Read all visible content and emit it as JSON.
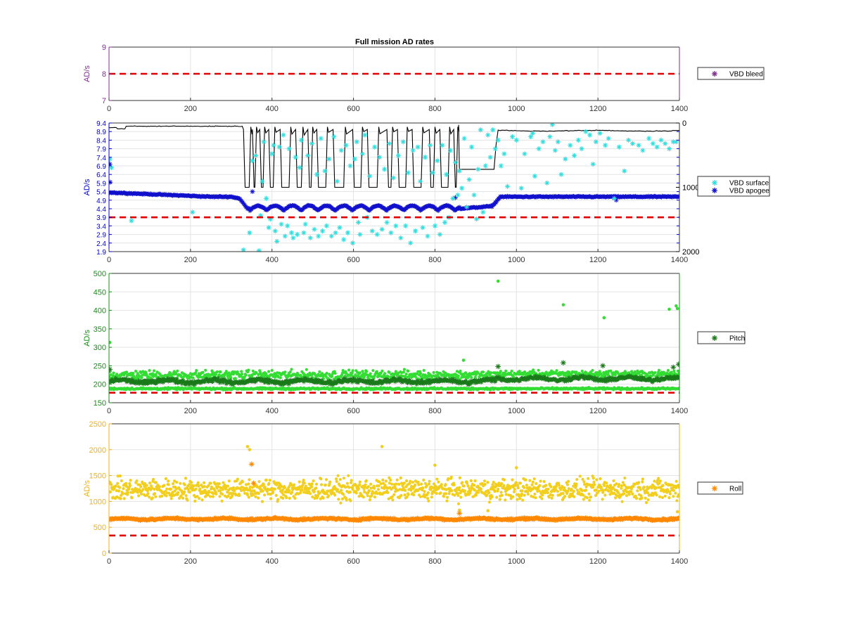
{
  "title": "Full mission AD rates",
  "chart_data": [
    {
      "type": "scatter",
      "ylabel": "AD/s",
      "xlim": [
        0,
        1400
      ],
      "ylim": [
        7,
        9
      ],
      "color": "#7E2F8E",
      "x_ticks": [
        "0",
        "200",
        "400",
        "600",
        "800",
        "1000",
        "1200",
        "1400"
      ],
      "y_ticks": [
        "7",
        "8",
        "9"
      ],
      "threshold": 8,
      "grid": true,
      "legend_position": "right",
      "legend": [
        {
          "name": "VBD bleed",
          "color": "#7E2F8E"
        }
      ],
      "series": []
    },
    {
      "type": "scatter",
      "ylabel": "AD/s",
      "xlim": [
        0,
        1400
      ],
      "ylim": [
        1.9,
        9.4
      ],
      "color": "#0000CC",
      "x_ticks": [
        "0",
        "200",
        "400",
        "600",
        "800",
        "1000",
        "1200",
        "1400"
      ],
      "y_ticks": [
        "1.9",
        "2.4",
        "2.9",
        "3.4",
        "3.9",
        "4.4",
        "4.9",
        "5.4",
        "5.9",
        "6.4",
        "6.9",
        "7.4",
        "7.9",
        "8.4",
        "8.9",
        "9.4"
      ],
      "threshold": 3.9,
      "grid": true,
      "legend_position": "right",
      "legend": [
        {
          "name": "VBD surface",
          "color": "#33DDDD"
        },
        {
          "name": "VBD apogee",
          "color": "#1111CC"
        }
      ],
      "y2lim": [
        0,
        2000
      ],
      "y2_reversed": true,
      "y2_ticks": [
        "0",
        "1000",
        "2000"
      ],
      "y2_line_color": "#000000",
      "depth_profile": {
        "dive_intervals": [
          [
            330,
            348
          ],
          [
            352,
            362
          ],
          [
            370,
            382
          ],
          [
            392,
            407
          ],
          [
            420,
            446
          ],
          [
            458,
            476
          ],
          [
            488,
            500
          ],
          [
            510,
            536
          ],
          [
            550,
            580
          ],
          [
            598,
            622
          ],
          [
            634,
            662
          ],
          [
            682,
            696
          ],
          [
            708,
            732
          ],
          [
            744,
            770
          ],
          [
            786,
            800
          ],
          [
            812,
            836
          ],
          [
            846,
            856
          ]
        ],
        "surface_depth": 100,
        "max_depth": 1000,
        "flat_segment": {
          "x": [
            860,
            945
          ],
          "depth": 720
        }
      },
      "series": [
        {
          "name": "VBD surface",
          "color": "#33DDDD",
          "points": [
            [
              2,
              7.3
            ],
            [
              6,
              6.8
            ],
            [
              55,
              3.7
            ],
            [
              205,
              4.2
            ],
            [
              330,
              2.0
            ],
            [
              345,
              3.0
            ],
            [
              352,
              7.2
            ],
            [
              360,
              7.5
            ],
            [
              368,
              1.95
            ],
            [
              372,
              4.0
            ],
            [
              376,
              6.0
            ],
            [
              380,
              8.3
            ],
            [
              386,
              5.0
            ],
            [
              392,
              3.3
            ],
            [
              396,
              3.8
            ],
            [
              400,
              7.6
            ],
            [
              404,
              8.1
            ],
            [
              408,
              3.1
            ],
            [
              412,
              2.5
            ],
            [
              418,
              8.0
            ],
            [
              423,
              3.5
            ],
            [
              428,
              8.7
            ],
            [
              432,
              2.8
            ],
            [
              438,
              3.4
            ],
            [
              442,
              7.9
            ],
            [
              448,
              3.0
            ],
            [
              452,
              2.7
            ],
            [
              458,
              7.4
            ],
            [
              462,
              2.9
            ],
            [
              468,
              6.8
            ],
            [
              472,
              8.4
            ],
            [
              478,
              3.0
            ],
            [
              482,
              3.5
            ],
            [
              488,
              7.5
            ],
            [
              494,
              2.7
            ],
            [
              498,
              8.2
            ],
            [
              504,
              3.2
            ],
            [
              510,
              6.4
            ],
            [
              514,
              2.8
            ],
            [
              520,
              8.5
            ],
            [
              524,
              3.1
            ],
            [
              530,
              6.6
            ],
            [
              534,
              3.4
            ],
            [
              540,
              7.3
            ],
            [
              546,
              2.8
            ],
            [
              552,
              8.6
            ],
            [
              556,
              3.0
            ],
            [
              560,
              6.0
            ],
            [
              566,
              3.3
            ],
            [
              570,
              7.8
            ],
            [
              576,
              2.6
            ],
            [
              582,
              8.1
            ],
            [
              586,
              3.0
            ],
            [
              592,
              6.9
            ],
            [
              598,
              2.4
            ],
            [
              603,
              7.3
            ],
            [
              608,
              8.3
            ],
            [
              612,
              3.6
            ],
            [
              616,
              2.9
            ],
            [
              622,
              7.6
            ],
            [
              628,
              8.7
            ],
            [
              634,
              3.9
            ],
            [
              640,
              6.3
            ],
            [
              646,
              3.1
            ],
            [
              652,
              8.0
            ],
            [
              658,
              2.9
            ],
            [
              664,
              7.4
            ],
            [
              670,
              3.2
            ],
            [
              676,
              6.7
            ],
            [
              682,
              3.6
            ],
            [
              688,
              8.2
            ],
            [
              692,
              3.0
            ],
            [
              698,
              6.2
            ],
            [
              704,
              3.4
            ],
            [
              710,
              7.5
            ],
            [
              716,
              2.7
            ],
            [
              722,
              8.3
            ],
            [
              728,
              3.4
            ],
            [
              734,
              6.5
            ],
            [
              740,
              2.4
            ],
            [
              746,
              7.8
            ],
            [
              752,
              3.1
            ],
            [
              758,
              8.0
            ],
            [
              764,
              6.0
            ],
            [
              770,
              3.3
            ],
            [
              776,
              7.4
            ],
            [
              782,
              2.8
            ],
            [
              788,
              8.1
            ],
            [
              794,
              6.5
            ],
            [
              800,
              3.4
            ],
            [
              806,
              7.2
            ],
            [
              812,
              2.9
            ],
            [
              818,
              8.1
            ],
            [
              824,
              3.6
            ],
            [
              828,
              6.4
            ],
            [
              834,
              3.9
            ],
            [
              838,
              7.8
            ],
            [
              844,
              5.0
            ],
            [
              850,
              7.1
            ],
            [
              856,
              5.2
            ],
            [
              860,
              6.6
            ],
            [
              866,
              5.6
            ],
            [
              872,
              8.5
            ],
            [
              878,
              4.5
            ],
            [
              884,
              6.1
            ],
            [
              890,
              8.0
            ],
            [
              896,
              5.2
            ],
            [
              902,
              3.8
            ],
            [
              906,
              6.7
            ],
            [
              912,
              9.0
            ],
            [
              918,
              4.2
            ],
            [
              924,
              6.9
            ],
            [
              930,
              8.7
            ],
            [
              936,
              7.4
            ],
            [
              942,
              9.0
            ],
            [
              948,
              7.9
            ],
            [
              955,
              8.4
            ],
            [
              962,
              6.9
            ],
            [
              970,
              7.6
            ],
            [
              978,
              5.7
            ],
            [
              990,
              8.6
            ],
            [
              1000,
              8.4
            ],
            [
              1012,
              5.6
            ],
            [
              1020,
              7.6
            ],
            [
              1035,
              8.6
            ],
            [
              1040,
              8.8
            ],
            [
              1045,
              6.3
            ],
            [
              1055,
              7.9
            ],
            [
              1065,
              8.3
            ],
            [
              1075,
              5.9
            ],
            [
              1082,
              8.6
            ],
            [
              1088,
              9.3
            ],
            [
              1095,
              7.8
            ],
            [
              1102,
              8.3
            ],
            [
              1110,
              6.4
            ],
            [
              1120,
              7.3
            ],
            [
              1132,
              8.1
            ],
            [
              1142,
              7.5
            ],
            [
              1152,
              8.4
            ],
            [
              1160,
              7.9
            ],
            [
              1170,
              8.9
            ],
            [
              1180,
              8.7
            ],
            [
              1188,
              7.0
            ],
            [
              1195,
              8.3
            ],
            [
              1205,
              8.8
            ],
            [
              1218,
              8.1
            ],
            [
              1226,
              8.5
            ],
            [
              1240,
              5.0
            ],
            [
              1252,
              8.0
            ],
            [
              1265,
              6.6
            ],
            [
              1275,
              8.4
            ],
            [
              1285,
              8.2
            ],
            [
              1300,
              8.1
            ],
            [
              1310,
              7.8
            ],
            [
              1325,
              8.5
            ],
            [
              1335,
              8.2
            ],
            [
              1345,
              8.0
            ],
            [
              1355,
              8.4
            ],
            [
              1365,
              8.2
            ],
            [
              1375,
              7.9
            ],
            [
              1385,
              8.3
            ],
            [
              1392,
              8.3
            ]
          ]
        },
        {
          "name": "VBD apogee",
          "color": "#1111CC",
          "trend": {
            "x": [
              0,
              50,
              100,
              150,
              200,
              250,
              300,
              320,
              340,
              860,
              940,
              950,
              960,
              1400
            ],
            "y": [
              5.35,
              5.3,
              5.25,
              5.2,
              5.15,
              5.1,
              5.1,
              5.0,
              4.4,
              4.4,
              4.55,
              4.8,
              5.1,
              5.1
            ]
          },
          "oscillation": {
            "x_range": [
              345,
              860
            ],
            "period": 42,
            "amplitude": 0.28,
            "center": 4.45
          },
          "sample_interval": 2,
          "outliers": [
            [
              2,
              7.0
            ],
            [
              3,
              5.95
            ],
            [
              352,
              5.4
            ],
            [
              850,
              5.05
            ],
            [
              1245,
              4.9
            ]
          ]
        }
      ]
    },
    {
      "type": "scatter",
      "ylabel": "AD/s",
      "xlim": [
        0,
        1400
      ],
      "ylim": [
        150,
        500
      ],
      "color": "#1A8C1A",
      "x_ticks": [
        "0",
        "200",
        "400",
        "600",
        "800",
        "1000",
        "1200",
        "1400"
      ],
      "y_ticks": [
        "150",
        "200",
        "250",
        "300",
        "350",
        "400",
        "450",
        "500"
      ],
      "threshold": 177,
      "grid": true,
      "legend_position": "right",
      "legend": [
        {
          "name": "Pitch",
          "color": "#1A7A1A"
        }
      ],
      "series": [
        {
          "name": "Pitch high-rate points",
          "color": "#33DD33",
          "bands": [
            {
              "x_range": [
                0,
                950
              ],
              "center": 225,
              "spread": 14
            },
            {
              "x_range": [
                950,
                1400
              ],
              "center": 228,
              "spread": 10
            },
            {
              "x_range": [
                0,
                1400
              ],
              "center": 188,
              "spread": 3
            }
          ],
          "outliers": [
            [
              2,
              313
            ],
            [
              870,
              265
            ],
            [
              955,
              479
            ],
            [
              1115,
              415
            ],
            [
              1215,
              380
            ],
            [
              1375,
              403
            ],
            [
              1392,
              412
            ],
            [
              1395,
              405
            ]
          ]
        },
        {
          "name": "Pitch",
          "color": "#1A7A1A",
          "bands": [
            {
              "x_range": [
                0,
                950
              ],
              "center": 208,
              "spread": 8
            },
            {
              "x_range": [
                950,
                1400
              ],
              "center": 215,
              "spread": 7
            }
          ],
          "outliers": [
            [
              2,
              240
            ],
            [
              955,
              248
            ],
            [
              1115,
              258
            ],
            [
              1212,
              250
            ],
            [
              1385,
              246
            ],
            [
              1398,
              254
            ]
          ]
        }
      ]
    },
    {
      "type": "scatter",
      "ylabel": "AD/s",
      "xlim": [
        0,
        1400
      ],
      "ylim": [
        0,
        2500
      ],
      "color": "#EDB120",
      "x_ticks": [
        "0",
        "200",
        "400",
        "600",
        "800",
        "1000",
        "1200",
        "1400"
      ],
      "y_ticks": [
        "0",
        "500",
        "1000",
        "1500",
        "2000",
        "2500"
      ],
      "threshold": 340,
      "grid": true,
      "legend_position": "right",
      "legend": [
        {
          "name": "Roll",
          "color": "#FF8C00"
        }
      ],
      "series": [
        {
          "name": "Roll high-rate points",
          "color": "#F2CF1F",
          "bands": [
            {
              "x_range": [
                0,
                1400
              ],
              "center": 1230,
              "spread": 230
            }
          ],
          "outliers": [
            [
              340,
              2060
            ],
            [
              345,
              2000
            ],
            [
              670,
              2060
            ],
            [
              800,
              1700
            ],
            [
              1000,
              1650
            ],
            [
              860,
              830
            ],
            [
              930,
              820
            ],
            [
              1395,
              800
            ]
          ]
        },
        {
          "name": "Roll",
          "color": "#FF8800",
          "bands": [
            {
              "x_range": [
                0,
                1400
              ],
              "center": 660,
              "spread": 30
            }
          ],
          "outliers": [
            [
              350,
              1720
            ],
            [
              355,
              1350
            ],
            [
              860,
              770
            ]
          ]
        }
      ]
    }
  ]
}
